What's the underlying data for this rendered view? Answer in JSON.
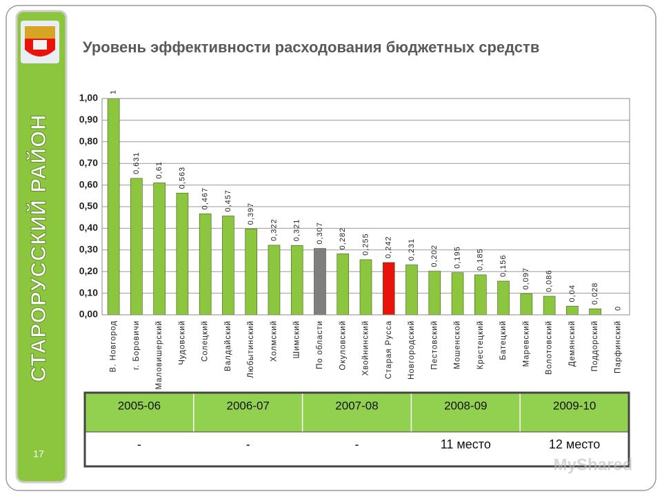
{
  "slide": {
    "side_label": "СТАРОРУССКИЙ РАЙОН",
    "page_number": "17",
    "watermark": "MyShared"
  },
  "chart_data": {
    "type": "bar",
    "title": "Уровень эффективности расходования бюджетных средств",
    "categories": [
      "В. Новгород",
      "г. Боровичи",
      "Маловишерский",
      "Чудовский",
      "Солецкий",
      "Валдайский",
      "Любытинский",
      "Холмский",
      "Шимский",
      "По области",
      "Окуловский",
      "Хвойнинский",
      "Старая Русса",
      "Новгородский",
      "Пестовский",
      "Мошенской",
      "Крестецкий",
      "Батецкий",
      "Маревский",
      "Волотовский",
      "Демянский",
      "Поддорский",
      "Парфинский"
    ],
    "values": [
      1,
      0.631,
      0.61,
      0.563,
      0.467,
      0.457,
      0.397,
      0.322,
      0.321,
      0.307,
      0.282,
      0.255,
      0.242,
      0.231,
      0.202,
      0.195,
      0.185,
      0.156,
      0.097,
      0.086,
      0.04,
      0.028,
      0
    ],
    "value_labels": [
      "1",
      "0,631",
      "0,61",
      "0,563",
      "0,467",
      "0,457",
      "0,397",
      "0,322",
      "0,321",
      "0,307",
      "0,282",
      "0,255",
      "0,242",
      "0,231",
      "0,202",
      "0,195",
      "0,185",
      "0,156",
      "0,097",
      "0,086",
      "0,04",
      "0,028",
      "0"
    ],
    "colors": [
      "#8cc63e",
      "#8cc63e",
      "#8cc63e",
      "#8cc63e",
      "#8cc63e",
      "#8cc63e",
      "#8cc63e",
      "#8cc63e",
      "#8cc63e",
      "#7f7f7f",
      "#8cc63e",
      "#8cc63e",
      "#e8140c",
      "#8cc63e",
      "#8cc63e",
      "#8cc63e",
      "#8cc63e",
      "#8cc63e",
      "#8cc63e",
      "#8cc63e",
      "#8cc63e",
      "#8cc63e",
      "#8cc63e"
    ],
    "ylim": [
      0,
      1
    ],
    "yticks": [
      {
        "value": 0,
        "label": "0,00"
      },
      {
        "value": 0.1,
        "label": "0,10"
      },
      {
        "value": 0.2,
        "label": "0,20"
      },
      {
        "value": 0.3,
        "label": "0,30"
      },
      {
        "value": 0.4,
        "label": "0,40"
      },
      {
        "value": 0.5,
        "label": "0,50"
      },
      {
        "value": 0.6,
        "label": "0,60"
      },
      {
        "value": 0.7,
        "label": "0,70"
      },
      {
        "value": 0.8,
        "label": "0,80"
      },
      {
        "value": 0.9,
        "label": "0,90"
      },
      {
        "value": 1,
        "label": "1,00"
      }
    ],
    "grid": true
  },
  "table": {
    "header": [
      "2005-06",
      "2006-07",
      "2007-08",
      "2008-09",
      "2009-10"
    ],
    "rows": [
      [
        "-",
        "-",
        "-",
        "11 место",
        "12 место"
      ]
    ]
  }
}
